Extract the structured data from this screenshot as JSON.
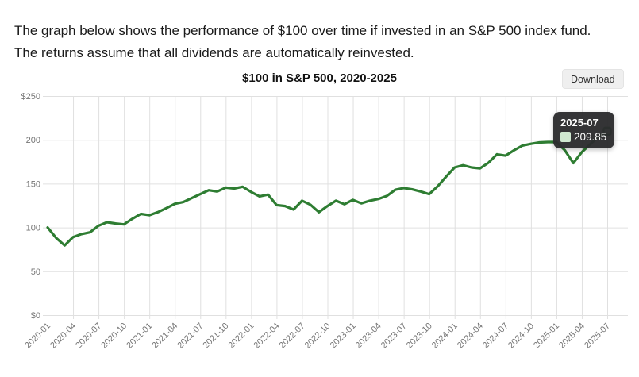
{
  "intro": {
    "text": "The graph below shows the performance of $100 over time if invested in an S&P 500 index fund. The returns assume that all dividends are automatically reinvested."
  },
  "header": {
    "title": "$100 in S&P 500, 2020-2025",
    "download_label": "Download"
  },
  "tooltip": {
    "period": "2025-07",
    "value": "209.85",
    "swatch_color": "#cfe8d0"
  },
  "colors": {
    "line": "#2e7d32",
    "marker_fill": "#cfe8d0",
    "grid": "#e0e0e0",
    "axis_text": "#757575"
  },
  "chart_data": {
    "type": "line",
    "title": "$100 in S&P 500, 2020-2025",
    "xlabel": "",
    "ylabel": "",
    "ylim": [
      0,
      250
    ],
    "grid": true,
    "legend_position": "none",
    "ytick_values": [
      0,
      50,
      100,
      150,
      200,
      250
    ],
    "ytick_labels": [
      "$0",
      "50",
      "100",
      "150",
      "200",
      "$250"
    ],
    "xticks": [
      "2020-01",
      "2020-04",
      "2020-07",
      "2020-10",
      "2021-01",
      "2021-04",
      "2021-07",
      "2021-10",
      "2022-01",
      "2022-04",
      "2022-07",
      "2022-10",
      "2023-01",
      "2023-04",
      "2023-07",
      "2023-10",
      "2024-01",
      "2024-04",
      "2024-07",
      "2024-10",
      "2025-01",
      "2025-04",
      "2025-07"
    ],
    "x": [
      "2020-01",
      "2020-02",
      "2020-03",
      "2020-04",
      "2020-05",
      "2020-06",
      "2020-07",
      "2020-08",
      "2020-09",
      "2020-10",
      "2020-11",
      "2020-12",
      "2021-01",
      "2021-02",
      "2021-03",
      "2021-04",
      "2021-05",
      "2021-06",
      "2021-07",
      "2021-08",
      "2021-09",
      "2021-10",
      "2021-11",
      "2021-12",
      "2022-01",
      "2022-02",
      "2022-03",
      "2022-04",
      "2022-05",
      "2022-06",
      "2022-07",
      "2022-08",
      "2022-09",
      "2022-10",
      "2022-11",
      "2022-12",
      "2023-01",
      "2023-02",
      "2023-03",
      "2023-04",
      "2023-05",
      "2023-06",
      "2023-07",
      "2023-08",
      "2023-09",
      "2023-10",
      "2023-11",
      "2023-12",
      "2024-01",
      "2024-02",
      "2024-03",
      "2024-04",
      "2024-05",
      "2024-06",
      "2024-07",
      "2024-08",
      "2024-09",
      "2024-10",
      "2024-11",
      "2024-12",
      "2025-01",
      "2025-02",
      "2025-03",
      "2025-04",
      "2025-05",
      "2025-06",
      "2025-07"
    ],
    "series": [
      {
        "name": "S&P 500",
        "values": [
          100,
          88,
          79.5,
          89,
          92.5,
          94.5,
          102,
          106,
          104.5,
          103.5,
          110,
          115.5,
          114,
          117.5,
          122,
          127,
          129,
          133.5,
          138,
          142.5,
          141,
          145.5,
          144.5,
          146.5,
          140.5,
          135.5,
          137.5,
          125.5,
          124.5,
          120.5,
          130.5,
          126,
          117.5,
          124.5,
          130.5,
          126.5,
          131.5,
          127.5,
          130.5,
          132.5,
          136,
          143,
          145,
          143.5,
          141,
          138,
          147,
          158,
          168.5,
          171,
          168.5,
          167.5,
          174,
          183.5,
          182,
          188,
          193.5,
          195.5,
          197,
          197.5,
          197.5,
          188,
          173.5,
          186,
          195,
          204,
          209.85
        ]
      }
    ],
    "highlight": {
      "x": "2025-07",
      "value": 209.85
    }
  }
}
